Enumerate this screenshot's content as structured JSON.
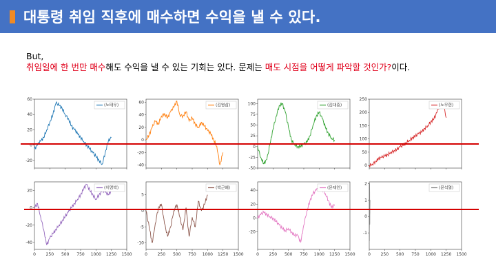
{
  "header": {
    "title": "대통령 취임 직후에 매수하면 수익을 낼 수 있다.",
    "bar_color": "#4472c4",
    "accent_color": "#f08a24"
  },
  "intro": {
    "line1": "But,",
    "line2": [
      {
        "text": "취임일에 한 번만 매수",
        "red": true
      },
      {
        "text": "해도 수익을 낼 수 있는 기회는 있다. 문제는 ",
        "red": false
      },
      {
        "text": "매도 시점을 어떻게 파악할 것인가?",
        "red": true
      },
      {
        "text": "이다.",
        "red": false
      }
    ]
  },
  "chart_data": [
    {
      "type": "line",
      "legend": "(노태우)",
      "color": "#1f77b4",
      "xlim": [
        0,
        1500
      ],
      "ylim": [
        -30,
        60
      ],
      "yticks": [
        -20,
        0,
        20,
        40,
        60
      ],
      "xticks": [
        0,
        250,
        500,
        750,
        1000,
        1250,
        1500
      ],
      "x": [
        0,
        50,
        100,
        150,
        200,
        250,
        300,
        350,
        400,
        450,
        500,
        550,
        600,
        650,
        700,
        750,
        800,
        850,
        900,
        950,
        1000,
        1050,
        1100,
        1150,
        1200,
        1250
      ],
      "y": [
        -5,
        0,
        5,
        10,
        20,
        30,
        40,
        55,
        52,
        48,
        40,
        35,
        25,
        20,
        15,
        10,
        5,
        0,
        -5,
        -10,
        -15,
        -20,
        -25,
        -10,
        5,
        10
      ]
    },
    {
      "type": "line",
      "legend": "(김영삼)",
      "color": "#ff7f0e",
      "xlim": [
        0,
        1500
      ],
      "ylim": [
        -45,
        65
      ],
      "yticks": [
        -40,
        -20,
        0,
        20,
        40,
        60
      ],
      "xticks": [
        0,
        250,
        500,
        750,
        1000,
        1250,
        1500
      ],
      "x": [
        0,
        50,
        100,
        150,
        200,
        250,
        300,
        350,
        400,
        450,
        500,
        550,
        600,
        650,
        700,
        750,
        800,
        850,
        900,
        950,
        1000,
        1050,
        1100,
        1150,
        1200,
        1250
      ],
      "y": [
        0,
        8,
        20,
        30,
        25,
        38,
        42,
        35,
        45,
        52,
        62,
        40,
        38,
        45,
        30,
        35,
        25,
        20,
        28,
        22,
        15,
        10,
        0,
        -10,
        -40,
        -20
      ]
    },
    {
      "type": "line",
      "legend": "(김대중)",
      "color": "#2ca02c",
      "xlim": [
        0,
        1500
      ],
      "ylim": [
        -50,
        110
      ],
      "yticks": [
        -50,
        -25,
        0,
        25,
        50,
        75,
        100
      ],
      "xticks": [
        0,
        250,
        500,
        750,
        1000,
        1250,
        1500
      ],
      "x": [
        0,
        50,
        100,
        150,
        200,
        250,
        300,
        350,
        400,
        450,
        500,
        550,
        600,
        650,
        700,
        750,
        800,
        850,
        900,
        950,
        1000,
        1050,
        1100,
        1150,
        1200,
        1250
      ],
      "y": [
        0,
        -25,
        -40,
        -30,
        5,
        40,
        70,
        95,
        100,
        80,
        45,
        15,
        5,
        0,
        0,
        5,
        10,
        25,
        50,
        70,
        80,
        65,
        45,
        30,
        20,
        15
      ]
    },
    {
      "type": "line",
      "legend": "(노무현)",
      "color": "#d62728",
      "xlim": [
        0,
        1500
      ],
      "ylim": [
        -10,
        250
      ],
      "yticks": [
        0,
        50,
        100,
        150,
        200,
        250
      ],
      "xticks": [
        0,
        250,
        500,
        750,
        1000,
        1250,
        1500
      ],
      "x": [
        0,
        50,
        100,
        150,
        200,
        250,
        300,
        350,
        400,
        450,
        500,
        550,
        600,
        650,
        700,
        750,
        800,
        850,
        900,
        950,
        1000,
        1050,
        1100,
        1150,
        1200,
        1250
      ],
      "y": [
        0,
        5,
        15,
        25,
        30,
        35,
        40,
        50,
        55,
        60,
        70,
        75,
        85,
        95,
        105,
        110,
        120,
        125,
        140,
        150,
        165,
        175,
        200,
        230,
        240,
        180
      ]
    },
    {
      "type": "line",
      "legend": "(이명박)",
      "color": "#9467bd",
      "xlim": [
        0,
        1500
      ],
      "ylim": [
        -48,
        30
      ],
      "yticks": [
        -40,
        -20,
        0,
        20
      ],
      "xticks": [
        0,
        250,
        500,
        750,
        1000,
        1250,
        1500
      ],
      "x": [
        0,
        50,
        100,
        150,
        200,
        250,
        300,
        350,
        400,
        450,
        500,
        550,
        600,
        650,
        700,
        750,
        800,
        850,
        900,
        950,
        1000,
        1050,
        1100,
        1150,
        1200,
        1250
      ],
      "y": [
        0,
        5,
        -10,
        -25,
        -43,
        -35,
        -30,
        -25,
        -20,
        -15,
        -10,
        -5,
        0,
        5,
        10,
        15,
        22,
        27,
        20,
        15,
        10,
        15,
        20,
        18,
        15,
        20
      ]
    },
    {
      "type": "line",
      "legend": "(박근혜)",
      "color": "#8c564b",
      "xlim": [
        0,
        1500
      ],
      "ylim": [
        -12,
        9
      ],
      "yticks": [
        -10,
        -5,
        0,
        5
      ],
      "xticks": [
        0,
        250,
        500,
        750,
        1000,
        1250,
        1500
      ],
      "x": [
        0,
        50,
        100,
        150,
        200,
        250,
        300,
        350,
        400,
        450,
        500,
        550,
        600,
        650,
        700,
        750,
        800,
        850,
        900,
        950,
        1000
      ],
      "y": [
        0,
        -5,
        -10,
        -4,
        1,
        2,
        -4,
        -8,
        -5,
        0,
        2,
        -2,
        -6,
        1,
        -8,
        -2,
        -5,
        3,
        0,
        2,
        5
      ]
    },
    {
      "type": "line",
      "legend": "(문재인)",
      "color": "#e377c2",
      "xlim": [
        0,
        1500
      ],
      "ylim": [
        -45,
        52
      ],
      "yticks": [
        -20,
        0,
        20,
        40
      ],
      "xticks": [
        0,
        250,
        500,
        750,
        1000,
        1250,
        1500
      ],
      "x": [
        0,
        50,
        100,
        150,
        200,
        250,
        300,
        350,
        400,
        450,
        500,
        550,
        600,
        650,
        700,
        750,
        800,
        850,
        900,
        950,
        1000,
        1050,
        1100,
        1150,
        1200,
        1250
      ],
      "y": [
        0,
        5,
        8,
        5,
        2,
        0,
        -5,
        -10,
        -15,
        -18,
        -15,
        -20,
        -25,
        -25,
        -35,
        -10,
        10,
        25,
        35,
        40,
        45,
        42,
        35,
        25,
        15,
        18
      ]
    },
    {
      "type": "line",
      "legend": "(윤석열)",
      "color": "#7f7f7f",
      "xlim": [
        0,
        1500
      ],
      "ylim": [
        -2,
        2.1
      ],
      "yticks": [
        -1,
        0,
        1,
        2
      ],
      "xticks": [
        0,
        250,
        500,
        750,
        1000,
        1250,
        1500
      ],
      "x": [
        0,
        2,
        4,
        6,
        8,
        10,
        12
      ],
      "y": [
        0,
        -1.5,
        1.5,
        2,
        -0.5,
        0.5,
        1
      ]
    }
  ]
}
